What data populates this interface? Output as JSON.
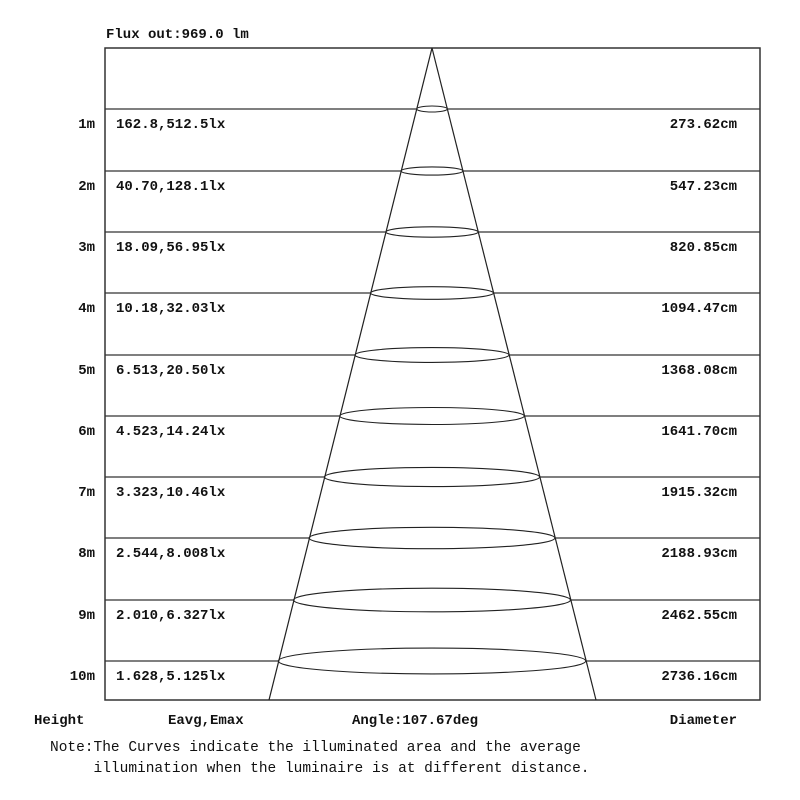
{
  "flux_label": "Flux out:969.0 lm",
  "rows": [
    {
      "height": "1m",
      "illuminance": "162.8,512.5lx",
      "diameter": "273.62cm"
    },
    {
      "height": "2m",
      "illuminance": "40.70,128.1lx",
      "diameter": "547.23cm"
    },
    {
      "height": "3m",
      "illuminance": "18.09,56.95lx",
      "diameter": "820.85cm"
    },
    {
      "height": "4m",
      "illuminance": "10.18,32.03lx",
      "diameter": "1094.47cm"
    },
    {
      "height": "5m",
      "illuminance": "6.513,20.50lx",
      "diameter": "1368.08cm"
    },
    {
      "height": "6m",
      "illuminance": "4.523,14.24lx",
      "diameter": "1641.70cm"
    },
    {
      "height": "7m",
      "illuminance": "3.323,10.46lx",
      "diameter": "1915.32cm"
    },
    {
      "height": "8m",
      "illuminance": "2.544,8.008lx",
      "diameter": "2188.93cm"
    },
    {
      "height": "9m",
      "illuminance": "2.010,6.327lx",
      "diameter": "2462.55cm"
    },
    {
      "height": "10m",
      "illuminance": "1.628,5.125lx",
      "diameter": "2736.16cm"
    }
  ],
  "footer": {
    "height_label": "Height",
    "eavg_label": "Eavg,Emax",
    "angle_label": "Angle:107.67deg",
    "diameter_label": "Diameter"
  },
  "note": {
    "prefix": "Note:",
    "line1": "The Curves indicate the illuminated area and the average",
    "line2": "illumination when the luminaire is at different distance."
  }
}
